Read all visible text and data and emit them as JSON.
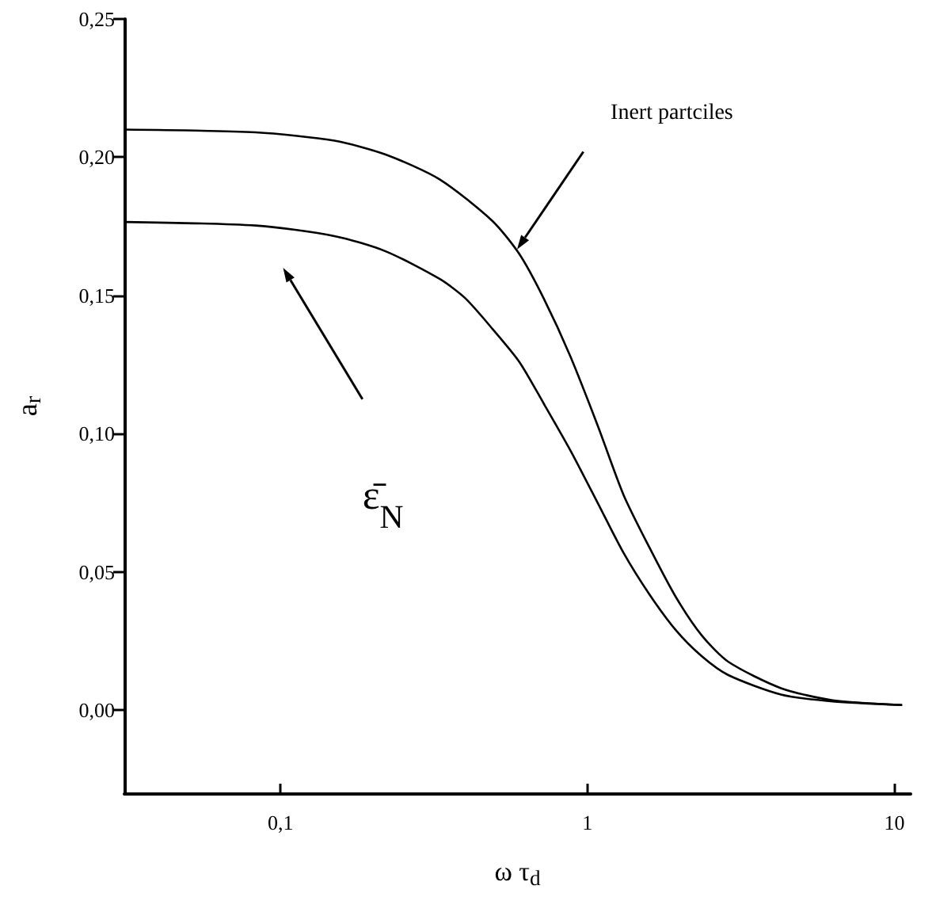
{
  "chart_data": {
    "type": "line",
    "xlabel": "ω τ$_{d}$",
    "ylabel": "a$_{r}$",
    "log": "x",
    "xlim": [
      0.031,
      11.3
    ],
    "xticks": [
      {
        "value": 0.1,
        "label": "0,1"
      },
      1,
      10
    ],
    "ylim": [
      -0.03,
      0.25
    ],
    "yticks": [
      {
        "value": 0,
        "label": "0,00"
      },
      {
        "value": 0.05,
        "label": "0,05"
      },
      {
        "value": 0.1,
        "label": "0,10"
      },
      {
        "value": 0.15,
        "label": "0,15"
      },
      {
        "value": 0.2,
        "label": "0,20"
      },
      {
        "value": 0.25,
        "label": "0,25"
      }
    ],
    "grid": false,
    "marker": "none",
    "line_style": "solid",
    "annotations": [
      "Inert partciles",
      "ε̄$_{N}$"
    ],
    "series": [
      {
        "color": "#000000",
        "x": [
          0.031,
          0.083,
          0.15,
          0.22,
          0.33,
          0.49,
          0.6,
          0.72,
          0.88,
          1.08,
          1.31,
          1.59,
          1.94,
          2.36,
          2.88,
          4.27,
          6.3,
          10.6
        ],
        "values": [
          0.21,
          0.209,
          0.206,
          0.201,
          0.192,
          0.177,
          0.165,
          0.149,
          0.128,
          0.103,
          0.078,
          0.059,
          0.041,
          0.027,
          0.0175,
          0.008,
          0.0036,
          0.0019
        ]
      },
      {
        "color": "#000000",
        "x": [
          0.031,
          0.083,
          0.15,
          0.22,
          0.33,
          0.4,
          0.49,
          0.6,
          0.72,
          0.88,
          1.08,
          1.31,
          1.59,
          1.94,
          2.36,
          2.88,
          4.27,
          6.3,
          10.6
        ],
        "values": [
          0.1766,
          0.1753,
          0.1715,
          0.166,
          0.156,
          0.149,
          0.138,
          0.126,
          0.111,
          0.094,
          0.075,
          0.057,
          0.042,
          0.029,
          0.0195,
          0.0127,
          0.0057,
          0.0032,
          0.0019
        ]
      }
    ]
  }
}
